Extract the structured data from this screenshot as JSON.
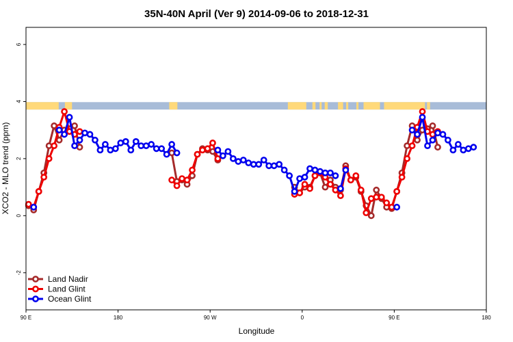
{
  "chart_data": {
    "type": "line",
    "title": "35N-40N April (Ver 9)   2014-09-06 to 2018-12-31",
    "xlabel": "Longitude",
    "ylabel": "XCO2 - MLO trend (ppm)",
    "xlim": [
      -180,
      270
    ],
    "ylim": [
      -3.3,
      6.6
    ],
    "x_ticks": [
      {
        "value": -180,
        "label": "90 E"
      },
      {
        "value": -90,
        "label": "180"
      },
      {
        "value": 0,
        "label": "90 W"
      },
      {
        "value": 90,
        "label": "0"
      },
      {
        "value": 180,
        "label": "90 E"
      },
      {
        "value": 270,
        "label": "180"
      }
    ],
    "y_ticks": [
      {
        "value": -2,
        "label": "-2"
      },
      {
        "value": 0,
        "label": "0"
      },
      {
        "value": 2,
        "label": "2"
      },
      {
        "value": 4,
        "label": "4"
      },
      {
        "value": 6,
        "label": "6"
      }
    ],
    "grid": false,
    "legend_position": "bottom-left",
    "land_ocean_strip": {
      "y_range": [
        3.72,
        3.98
      ],
      "land_color": "#ffd97a",
      "ocean_color": "#a8bcd8",
      "land_segments": [
        [
          -180,
          -148
        ],
        [
          -142,
          -135
        ],
        [
          -40,
          -32
        ],
        [
          76,
          94
        ],
        [
          100,
          103
        ],
        [
          107,
          109
        ],
        [
          112,
          115
        ],
        [
          125,
          130
        ],
        [
          133,
          135
        ],
        [
          143,
          145
        ],
        [
          150,
          166
        ],
        [
          170,
          210
        ],
        [
          212,
          215
        ]
      ]
    },
    "series": [
      {
        "name": "Land Nadir",
        "color": "#a52a2a",
        "points": [
          [
            -177.5,
            0.35
          ],
          [
            -172.5,
            0.2
          ],
          [
            -167.5,
            0.85
          ],
          [
            -162.5,
            1.5
          ],
          [
            -157.5,
            2.45
          ],
          [
            -152.5,
            3.15
          ],
          [
            -147.5,
            2.65
          ],
          [
            -142.5,
            3.0
          ],
          [
            -137.5,
            3.05
          ],
          [
            -132.5,
            3.15
          ],
          [
            -127.5,
            2.4
          ],
          null,
          [
            -37.5,
            2.2
          ],
          [
            -32.5,
            1.2
          ],
          [
            -27.5,
            1.25
          ],
          [
            -22.5,
            1.1
          ],
          [
            -17.5,
            1.4
          ],
          [
            -12.5,
            2.15
          ],
          [
            -7.5,
            2.35
          ],
          [
            -2.5,
            2.3
          ],
          [
            2.5,
            2.25
          ],
          [
            7.5,
            1.95
          ],
          null,
          [
            82.5,
            1.0
          ],
          [
            87.5,
            0.8
          ],
          [
            92.5,
            1.0
          ],
          [
            97.5,
            1.0
          ],
          [
            102.5,
            1.4
          ],
          [
            107.5,
            1.5
          ],
          [
            112.5,
            1.0
          ],
          [
            117.5,
            1.25
          ],
          [
            122.5,
            1.0
          ],
          [
            127.5,
            0.9
          ],
          [
            132.5,
            1.75
          ],
          [
            137.5,
            1.25
          ],
          [
            142.5,
            1.35
          ],
          [
            147.5,
            0.85
          ],
          [
            152.5,
            0.35
          ],
          [
            157.5,
            0.0
          ],
          [
            162.5,
            0.9
          ],
          [
            167.5,
            0.6
          ],
          [
            172.5,
            0.3
          ],
          [
            177.5,
            0.25
          ],
          [
            182.5,
            0.85
          ],
          [
            187.5,
            1.5
          ],
          [
            192.5,
            2.45
          ],
          [
            197.5,
            3.15
          ],
          [
            202.5,
            2.65
          ],
          [
            207.5,
            3.0
          ],
          [
            212.5,
            3.05
          ],
          [
            217.5,
            3.15
          ],
          [
            222.5,
            2.4
          ]
        ]
      },
      {
        "name": "Land Glint",
        "color": "#ee0000",
        "points": [
          [
            -177.5,
            0.4
          ],
          [
            -172.5,
            0.3
          ],
          [
            -167.5,
            0.85
          ],
          [
            -162.5,
            1.35
          ],
          [
            -157.5,
            2.0
          ],
          [
            -152.5,
            2.45
          ],
          [
            -147.5,
            3.1
          ],
          [
            -142.5,
            3.65
          ],
          [
            -137.5,
            2.95
          ],
          [
            -132.5,
            2.85
          ],
          [
            -127.5,
            2.95
          ],
          null,
          [
            -37.5,
            1.25
          ],
          [
            -32.5,
            1.05
          ],
          [
            -27.5,
            1.3
          ],
          [
            -22.5,
            1.25
          ],
          [
            -17.5,
            1.6
          ],
          [
            -12.5,
            2.15
          ],
          [
            -7.5,
            2.3
          ],
          [
            -2.5,
            2.35
          ],
          [
            2.5,
            2.55
          ],
          [
            7.5,
            2.0
          ],
          null,
          [
            82.5,
            0.75
          ],
          [
            87.5,
            0.8
          ],
          [
            92.5,
            1.1
          ],
          [
            97.5,
            0.95
          ],
          [
            102.5,
            1.4
          ],
          [
            107.5,
            1.5
          ],
          [
            112.5,
            1.35
          ],
          [
            117.5,
            1.1
          ],
          [
            122.5,
            0.9
          ],
          [
            127.5,
            0.7
          ],
          [
            132.5,
            1.65
          ],
          [
            137.5,
            1.25
          ],
          [
            142.5,
            1.4
          ],
          [
            147.5,
            0.9
          ],
          [
            152.5,
            0.1
          ],
          [
            157.5,
            0.6
          ],
          [
            162.5,
            0.65
          ],
          [
            167.5,
            0.65
          ],
          [
            172.5,
            0.45
          ],
          [
            177.5,
            0.3
          ],
          [
            182.5,
            0.85
          ],
          [
            187.5,
            1.35
          ],
          [
            192.5,
            2.0
          ],
          [
            197.5,
            2.45
          ],
          [
            202.5,
            3.1
          ],
          [
            207.5,
            3.65
          ],
          [
            212.5,
            2.95
          ],
          [
            217.5,
            2.85
          ],
          [
            222.5,
            2.95
          ]
        ]
      },
      {
        "name": "Ocean Glint",
        "color": "#0000ee",
        "points": [
          [
            -172.5,
            0.3
          ],
          null,
          [
            -147.5,
            3.0
          ],
          [
            -142.5,
            2.85
          ],
          [
            -137.5,
            3.45
          ],
          [
            -132.5,
            2.45
          ],
          [
            -127.5,
            2.65
          ],
          [
            -122.5,
            2.9
          ],
          [
            -117.5,
            2.85
          ],
          [
            -112.5,
            2.65
          ],
          [
            -107.5,
            2.3
          ],
          [
            -102.5,
            2.5
          ],
          [
            -97.5,
            2.3
          ],
          [
            -92.5,
            2.35
          ],
          [
            -87.5,
            2.55
          ],
          [
            -82.5,
            2.6
          ],
          [
            -77.5,
            2.3
          ],
          [
            -72.5,
            2.6
          ],
          [
            -67.5,
            2.45
          ],
          [
            -62.5,
            2.45
          ],
          [
            -57.5,
            2.5
          ],
          [
            -52.5,
            2.35
          ],
          [
            -47.5,
            2.35
          ],
          [
            -42.5,
            2.15
          ],
          [
            -37.5,
            2.5
          ],
          [
            -32.5,
            2.2
          ],
          null,
          [
            7.5,
            2.3
          ],
          [
            12.5,
            2.1
          ],
          [
            17.5,
            2.25
          ],
          [
            22.5,
            2.0
          ],
          [
            27.5,
            1.9
          ],
          [
            32.5,
            1.95
          ],
          [
            37.5,
            1.85
          ],
          [
            42.5,
            1.8
          ],
          [
            47.5,
            1.8
          ],
          [
            52.5,
            1.95
          ],
          [
            57.5,
            1.75
          ],
          [
            62.5,
            1.75
          ],
          [
            67.5,
            1.8
          ],
          [
            72.5,
            1.6
          ],
          [
            77.5,
            1.4
          ],
          [
            82.5,
            0.85
          ],
          [
            87.5,
            1.3
          ],
          [
            92.5,
            1.35
          ],
          [
            97.5,
            1.65
          ],
          [
            102.5,
            1.6
          ],
          [
            107.5,
            1.55
          ],
          [
            112.5,
            1.5
          ],
          [
            117.5,
            1.5
          ],
          [
            122.5,
            1.4
          ],
          null,
          [
            127.5,
            0.95
          ],
          [
            132.5,
            1.6
          ],
          null,
          [
            182.5,
            0.3
          ],
          null,
          [
            197.5,
            3.0
          ],
          [
            202.5,
            2.85
          ],
          [
            207.5,
            3.45
          ],
          [
            212.5,
            2.45
          ],
          [
            217.5,
            2.65
          ],
          [
            222.5,
            2.9
          ],
          [
            227.5,
            2.85
          ],
          [
            232.5,
            2.65
          ],
          [
            237.5,
            2.3
          ],
          [
            242.5,
            2.5
          ],
          [
            247.5,
            2.3
          ],
          [
            252.5,
            2.35
          ],
          [
            257.5,
            2.4
          ]
        ]
      }
    ]
  }
}
